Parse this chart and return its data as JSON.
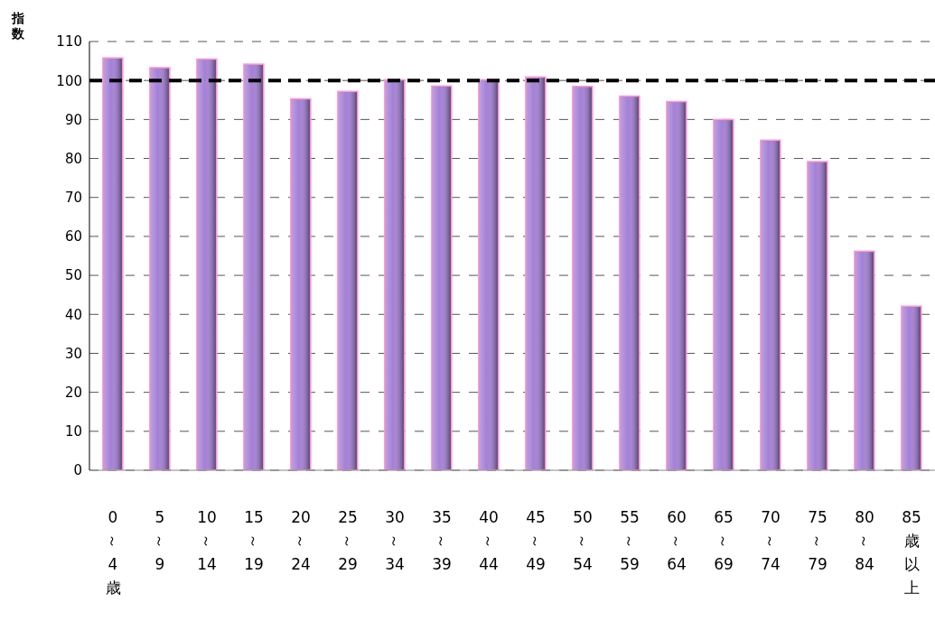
{
  "chart_data": {
    "type": "bar",
    "ylabel": "指数",
    "categories": [
      "0～4歳",
      "5～9",
      "10～14",
      "15～19",
      "20～24",
      "25～29",
      "30～34",
      "35～39",
      "40～44",
      "45～49",
      "50～54",
      "55～59",
      "60～64",
      "65～69",
      "70～74",
      "75～79",
      "80～84",
      "85歳以上"
    ],
    "values": [
      105.8,
      103.3,
      105.5,
      104.2,
      95.3,
      97.2,
      100.2,
      98.6,
      100.2,
      100.9,
      98.5,
      96.0,
      94.6,
      90.0,
      84.7,
      79.2,
      56.2,
      42.1
    ],
    "color": "#a47fd6",
    "ylim": [
      0,
      110
    ],
    "yticks": [
      0,
      10,
      20,
      30,
      40,
      50,
      60,
      70,
      80,
      90,
      100,
      110
    ],
    "grid": "y",
    "ref_lines": [
      {
        "axis": "y",
        "value": 100,
        "color": "#000000",
        "line_style": "dashed"
      }
    ]
  }
}
